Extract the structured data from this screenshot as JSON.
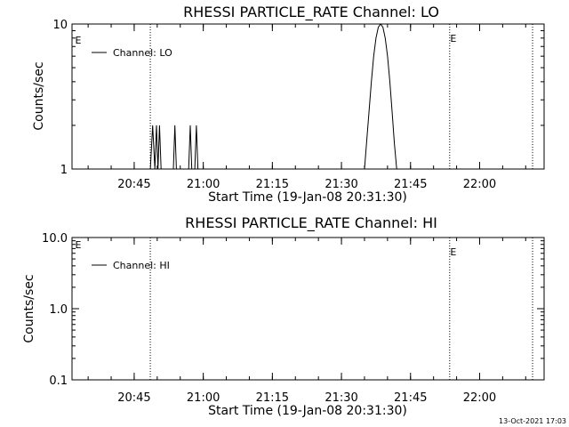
{
  "footer": {
    "timestamp": "13-Oct-2021 17:03"
  },
  "chart_data": [
    {
      "type": "line",
      "title": "RHESSI PARTICLE_RATE Channel: LO",
      "xlabel": "Start Time (19-Jan-08 20:31:30)",
      "ylabel": "Counts/sec",
      "yscale": "log",
      "ylim": [
        1,
        10
      ],
      "ytick_labels": [
        "1",
        "10"
      ],
      "xlim": [
        "20:31:30",
        "22:14:00"
      ],
      "xtick_labels": [
        "20:45",
        "21:00",
        "21:15",
        "21:30",
        "21:45",
        "22:00"
      ],
      "legend": {
        "placement": "top-left",
        "entries": [
          "Channel: LO"
        ]
      },
      "vlines": [
        {
          "x": "20:48:30",
          "label": ""
        },
        {
          "x": "21:53:30",
          "label": "E"
        },
        {
          "x": "22:11:30",
          "label": ""
        }
      ],
      "left_edge_label": "E",
      "series": [
        {
          "name": "Channel: LO",
          "points": [
            [
              "20:31:30",
              1
            ],
            [
              "20:48:30",
              1
            ],
            [
              "20:49:00",
              2
            ],
            [
              "20:49:30",
              1
            ],
            [
              "20:49:50",
              2
            ],
            [
              "20:50:10",
              1
            ],
            [
              "20:50:30",
              2
            ],
            [
              "20:50:50",
              1
            ],
            [
              "20:53:30",
              1
            ],
            [
              "20:53:50",
              2
            ],
            [
              "20:54:10",
              1
            ],
            [
              "20:56:50",
              1
            ],
            [
              "20:57:10",
              2
            ],
            [
              "20:57:30",
              1
            ],
            [
              "20:58:10",
              1
            ],
            [
              "20:58:30",
              2
            ],
            [
              "20:58:50",
              1
            ],
            [
              "21:35:00",
              1
            ],
            [
              "21:35:30",
              1.6
            ],
            [
              "21:36:00",
              2.5
            ],
            [
              "21:36:30",
              4
            ],
            [
              "21:37:00",
              6
            ],
            [
              "21:37:30",
              8
            ],
            [
              "21:38:00",
              9.5
            ],
            [
              "21:38:30",
              10
            ],
            [
              "21:39:00",
              9.5
            ],
            [
              "21:39:30",
              8
            ],
            [
              "21:40:00",
              6
            ],
            [
              "21:40:30",
              4
            ],
            [
              "21:41:00",
              2.5
            ],
            [
              "21:41:30",
              1.5
            ],
            [
              "21:42:00",
              1
            ],
            [
              "22:14:00",
              1
            ]
          ]
        }
      ]
    },
    {
      "type": "line",
      "title": "RHESSI PARTICLE_RATE Channel: HI",
      "xlabel": "Start Time (19-Jan-08 20:31:30)",
      "ylabel": "Counts/sec",
      "yscale": "log",
      "ylim": [
        0.1,
        10
      ],
      "ytick_labels": [
        "0.1",
        "1.0",
        "10.0"
      ],
      "xlim": [
        "20:31:30",
        "22:14:00"
      ],
      "xtick_labels": [
        "20:45",
        "21:00",
        "21:15",
        "21:30",
        "21:45",
        "22:00"
      ],
      "legend": {
        "placement": "top-left",
        "entries": [
          "Channel: HI"
        ]
      },
      "vlines": [
        {
          "x": "20:48:30",
          "label": ""
        },
        {
          "x": "21:53:30",
          "label": "E"
        },
        {
          "x": "22:11:30",
          "label": ""
        }
      ],
      "left_edge_label": "E",
      "series": [
        {
          "name": "Channel: HI",
          "points": []
        }
      ]
    }
  ]
}
